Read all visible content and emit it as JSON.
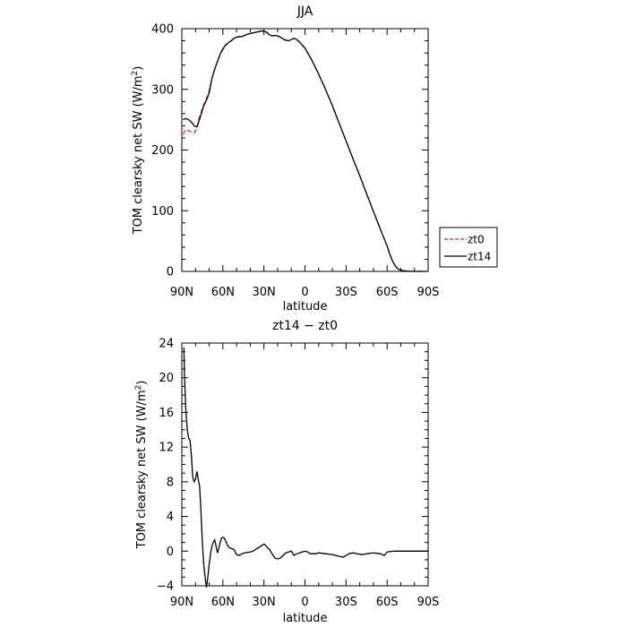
{
  "chart_data": [
    {
      "type": "line",
      "title": "JJA",
      "xlabel": "latitude",
      "ylabel": "TOM clearsky net SW (W/m",
      "ylabel_sup": "2",
      "ylabel_end": ")",
      "xlim": [
        90,
        -90
      ],
      "ylim": [
        0,
        400
      ],
      "x_ticks": [
        90,
        60,
        30,
        0,
        -30,
        -60,
        -90
      ],
      "x_tick_labels": [
        "90N",
        "60N",
        "30N",
        "0",
        "30S",
        "60S",
        "90S"
      ],
      "y_ticks": [
        0,
        100,
        200,
        300,
        400
      ],
      "y_tick_labels": [
        "0",
        "100",
        "200",
        "300",
        "400"
      ],
      "legend": {
        "placement": "outside-right",
        "entries": [
          {
            "label": "zt0",
            "color": "#e8261c",
            "dash": "dashed"
          },
          {
            "label": "zt14",
            "color": "#000000",
            "dash": "solid"
          }
        ]
      },
      "series": [
        {
          "name": "zt0",
          "color": "#e8261c",
          "dash": "dashed",
          "x": [
            89,
            87,
            85,
            83,
            81,
            79,
            78,
            76,
            74,
            72,
            70,
            68,
            66,
            64,
            62,
            60,
            58,
            56,
            54,
            52,
            50,
            48,
            46,
            44,
            42,
            40,
            38,
            36,
            34,
            32,
            30,
            28,
            26,
            24,
            22,
            20,
            18,
            16,
            14,
            12,
            10,
            8,
            6,
            4,
            2,
            0,
            -5,
            -10,
            -15,
            -20,
            -25,
            -30,
            -35,
            -40,
            -45,
            -50,
            -55,
            -60,
            -62,
            -64,
            -66,
            -68,
            -70,
            -72,
            -75,
            -78,
            -80,
            -85,
            -89
          ],
          "y": [
            226,
            234,
            232,
            230,
            228,
            235,
            248,
            262,
            275,
            285,
            298,
            318,
            333,
            345,
            357,
            366,
            372,
            377,
            380,
            383,
            385,
            387,
            387,
            389,
            391,
            392,
            393,
            394,
            395,
            396,
            396,
            394,
            390,
            388,
            389,
            388,
            386,
            383,
            381,
            380,
            382,
            384,
            382,
            378,
            373,
            368,
            348,
            325,
            300,
            273,
            244,
            215,
            186,
            158,
            128,
            99,
            70,
            42,
            28,
            17,
            9,
            4,
            2,
            1,
            0.5,
            0,
            0,
            0,
            0
          ]
        },
        {
          "name": "zt14",
          "color": "#000000",
          "dash": "solid",
          "x": [
            89,
            87,
            85,
            83,
            81,
            79,
            78,
            76,
            74,
            72,
            70,
            68,
            66,
            64,
            62,
            60,
            58,
            56,
            54,
            52,
            50,
            48,
            46,
            44,
            42,
            40,
            38,
            36,
            34,
            32,
            30,
            28,
            26,
            24,
            22,
            20,
            18,
            16,
            14,
            12,
            10,
            8,
            6,
            4,
            2,
            0,
            -5,
            -10,
            -15,
            -20,
            -25,
            -30,
            -35,
            -40,
            -45,
            -50,
            -55,
            -60,
            -62,
            -64,
            -66,
            -68,
            -70,
            -72,
            -75,
            -78,
            -80,
            -85,
            -89
          ],
          "y": [
            250,
            252,
            250,
            246,
            240,
            238,
            244,
            258,
            273,
            282,
            294,
            318,
            333,
            346,
            358,
            367,
            373,
            377,
            380,
            384,
            386,
            387,
            387,
            389,
            391,
            392,
            393,
            394,
            395,
            396,
            396,
            394,
            390,
            388,
            389,
            388,
            386,
            383,
            381,
            380,
            382,
            384,
            382,
            378,
            373,
            368,
            348,
            325,
            300,
            273,
            244,
            215,
            186,
            158,
            128,
            99,
            70,
            42,
            28,
            17,
            9,
            4,
            2,
            1,
            0.5,
            0,
            0,
            0,
            0
          ]
        }
      ]
    },
    {
      "type": "line",
      "title": "zt14 − zt0",
      "xlabel": "latitude",
      "ylabel": "TOM clearsky net SW (W/m",
      "ylabel_sup": "2",
      "ylabel_end": ")",
      "xlim": [
        90,
        -90
      ],
      "ylim": [
        -4,
        24
      ],
      "x_ticks": [
        90,
        60,
        30,
        0,
        -30,
        -60,
        -90
      ],
      "x_tick_labels": [
        "90N",
        "60N",
        "30N",
        "0",
        "30S",
        "60S",
        "90S"
      ],
      "y_ticks": [
        -4,
        0,
        4,
        8,
        12,
        16,
        20,
        24
      ],
      "y_tick_labels": [
        "−4",
        "0",
        "4",
        "8",
        "12",
        "16",
        "20",
        "24"
      ],
      "series": [
        {
          "color": "#000000",
          "dash": "solid",
          "x": [
            88.5,
            88,
            87,
            86,
            85,
            84,
            83,
            82,
            81,
            80,
            79,
            78,
            77,
            76,
            75,
            74,
            73,
            72,
            71,
            70,
            69,
            68,
            67,
            66,
            65,
            64,
            63,
            62,
            61,
            60,
            59,
            58,
            57,
            56,
            55,
            54,
            52,
            50,
            48,
            46,
            44,
            42,
            40,
            38,
            36,
            34,
            32,
            30,
            29,
            28,
            26,
            24,
            22,
            20,
            18,
            16,
            14,
            12,
            10,
            8,
            6,
            4,
            2,
            0,
            -2,
            -4,
            -6,
            -8,
            -10,
            -15,
            -20,
            -25,
            -28,
            -30,
            -32,
            -35,
            -38,
            -42,
            -45,
            -50,
            -55,
            -58,
            -60,
            -65,
            -70,
            -75,
            -80,
            -85,
            -90
          ],
          "y": [
            23.5,
            20,
            16,
            14,
            13,
            12.8,
            11,
            8.5,
            8,
            8.3,
            9.2,
            8.3,
            7.5,
            4.5,
            1,
            -1.5,
            -3,
            -4.2,
            -3,
            -1.5,
            -0.3,
            0.6,
            1,
            1.3,
            0.6,
            -0.2,
            0.3,
            1,
            1.5,
            1.6,
            1.5,
            1.2,
            0.8,
            0.5,
            0.4,
            0.3,
            0.2,
            -0.4,
            -0.5,
            -0.3,
            -0.2,
            -0.15,
            -0.1,
            0,
            0.2,
            0.4,
            0.6,
            0.8,
            0.7,
            0.5,
            0.2,
            -0.3,
            -0.8,
            -0.9,
            -0.8,
            -0.5,
            -0.2,
            -0.1,
            0,
            -0.5,
            -0.3,
            -0.2,
            -0.1,
            0,
            -0.1,
            -0.3,
            -0.3,
            -0.3,
            -0.2,
            -0.3,
            -0.4,
            -0.6,
            -0.7,
            -0.5,
            -0.3,
            -0.2,
            -0.3,
            -0.4,
            -0.3,
            -0.2,
            -0.3,
            -0.5,
            -0.1,
            0,
            0,
            0,
            0,
            0,
            0
          ]
        }
      ]
    }
  ]
}
